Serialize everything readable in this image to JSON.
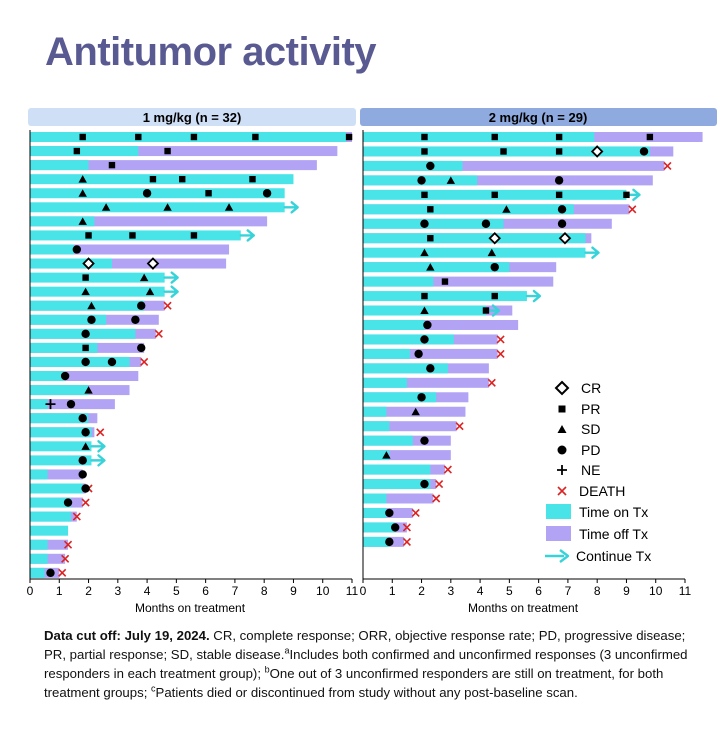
{
  "title": "Antitumor activity",
  "legend": {
    "cr": "CR",
    "pr": "PR",
    "sd": "SD",
    "pd": "PD",
    "ne": "NE",
    "death": "DEATH",
    "time_on": "Time on Tx",
    "time_off": "Time off Tx",
    "continue": "Continue Tx"
  },
  "colors": {
    "on_tx": "#49e4e8",
    "off_tx": "#b3a3f5",
    "death": "#dd2222",
    "arrow": "#38d3d8",
    "panel1_header": "#cfdff6",
    "panel2_header": "#8eaade",
    "title": "#5a5a92"
  },
  "footnote": {
    "cutoff": "Data cut off: July 19, 2024.",
    "part1": " CR, complete response; ORR, objective response rate; PD, progressive disease; PR, partial response; SD, stable disease.",
    "sup_a": "a",
    "part2": "Includes both confirmed and unconfirmed responses (3 unconfirmed responders in each treatment group); ",
    "sup_b": "b",
    "part3": "One out of 3 unconfirmed responders are still on treatment, for both treatment groups; ",
    "sup_c": "c",
    "part4": "Patients died or discontinued from study without any post-baseline scan."
  },
  "chart_data": [
    {
      "type": "bar",
      "title": "1 mg/kg (n = 32)",
      "xlabel": "Months on treatment",
      "xlim": [
        0,
        11
      ],
      "xticks": [
        0,
        1,
        2,
        3,
        4,
        5,
        6,
        7,
        8,
        9,
        10,
        11
      ],
      "patients": [
        {
          "on": 10.8,
          "off": 11.0,
          "events": [
            [
              "PR",
              1.8
            ],
            [
              "PR",
              3.7
            ],
            [
              "PR",
              5.6
            ],
            [
              "PR",
              7.7
            ],
            [
              "PR",
              10.9
            ]
          ]
        },
        {
          "on": 3.7,
          "off": 10.5,
          "events": [
            [
              "PR",
              1.6
            ],
            [
              "PR",
              4.7
            ]
          ]
        },
        {
          "on": 2.0,
          "off": 9.8,
          "events": [
            [
              "PR",
              2.8
            ]
          ]
        },
        {
          "on": 9.0,
          "off": 9.0,
          "events": [
            [
              "SD",
              1.8
            ],
            [
              "PR",
              4.2
            ],
            [
              "PR",
              5.2
            ],
            [
              "PR",
              7.6
            ]
          ]
        },
        {
          "on": 8.7,
          "off": 8.7,
          "events": [
            [
              "SD",
              1.8
            ],
            [
              "PD",
              4.0
            ],
            [
              "PR",
              6.1
            ],
            [
              "PD",
              8.1
            ]
          ]
        },
        {
          "on": 8.7,
          "off": 8.7,
          "cont": true,
          "events": [
            [
              "SD",
              2.6
            ],
            [
              "SD",
              4.7
            ],
            [
              "SD",
              6.8
            ]
          ]
        },
        {
          "on": 2.2,
          "off": 8.1,
          "events": [
            [
              "SD",
              1.8
            ]
          ]
        },
        {
          "on": 7.2,
          "off": 7.2,
          "cont": true,
          "events": [
            [
              "PR",
              2.0
            ],
            [
              "PR",
              3.5
            ],
            [
              "PR",
              5.6
            ]
          ]
        },
        {
          "on": 1.5,
          "off": 6.8,
          "events": [
            [
              "PD",
              1.6
            ]
          ]
        },
        {
          "on": 2.8,
          "off": 6.7,
          "events": [
            [
              "CR",
              2.0
            ],
            [
              "CR",
              4.2
            ]
          ]
        },
        {
          "on": 4.6,
          "off": 4.6,
          "cont": true,
          "events": [
            [
              "PR",
              1.9
            ],
            [
              "SD",
              3.9
            ]
          ]
        },
        {
          "on": 4.6,
          "off": 4.6,
          "cont": true,
          "events": [
            [
              "SD",
              1.9
            ],
            [
              "SD",
              4.1
            ]
          ]
        },
        {
          "on": 3.9,
          "off": 4.6,
          "death": 4.7,
          "events": [
            [
              "SD",
              2.1
            ],
            [
              "PD",
              3.8
            ]
          ]
        },
        {
          "on": 2.6,
          "off": 4.4,
          "events": [
            [
              "PD",
              2.1
            ],
            [
              "PD",
              3.6
            ]
          ]
        },
        {
          "on": 3.6,
          "off": 4.3,
          "death": 4.4,
          "events": [
            [
              "PD",
              1.9
            ]
          ]
        },
        {
          "on": 2.3,
          "off": 3.9,
          "events": [
            [
              "PR",
              1.9
            ],
            [
              "PD",
              3.8
            ]
          ]
        },
        {
          "on": 3.4,
          "off": 3.8,
          "death": 3.9,
          "events": [
            [
              "PD",
              1.9
            ],
            [
              "PD",
              2.8
            ]
          ]
        },
        {
          "on": 1.2,
          "off": 3.7,
          "events": [
            [
              "PD",
              1.2
            ]
          ]
        },
        {
          "on": 2.0,
          "off": 3.4,
          "events": [
            [
              "SD",
              2.0
            ]
          ]
        },
        {
          "on": 0.6,
          "off": 2.9,
          "events": [
            [
              "NE",
              0.7
            ],
            [
              "PD",
              1.4
            ]
          ]
        },
        {
          "on": 2.0,
          "off": 2.3,
          "events": [
            [
              "PD",
              1.8
            ]
          ]
        },
        {
          "on": 2.1,
          "off": 2.2,
          "death": 2.4,
          "events": [
            [
              "PD",
              1.9
            ]
          ]
        },
        {
          "on": 2.1,
          "off": 2.1,
          "cont": true,
          "events": [
            [
              "SD",
              1.9
            ]
          ]
        },
        {
          "on": 2.1,
          "off": 2.1,
          "cont": true,
          "events": [
            [
              "PD",
              1.8
            ]
          ]
        },
        {
          "on": 0.6,
          "off": 1.8,
          "events": [
            [
              "PD",
              1.8
            ]
          ]
        },
        {
          "on": 1.8,
          "off": 1.9,
          "death": 2.0,
          "events": [
            [
              "PD",
              1.9
            ]
          ]
        },
        {
          "on": 1.4,
          "off": 1.8,
          "death": 1.9,
          "events": [
            [
              "PD",
              1.3
            ]
          ]
        },
        {
          "on": 1.4,
          "off": 1.6,
          "death": 1.6,
          "events": []
        },
        {
          "on": 1.3,
          "off": 1.3,
          "events": []
        },
        {
          "on": 0.6,
          "off": 1.3,
          "death": 1.3,
          "events": []
        },
        {
          "on": 0.6,
          "off": 1.2,
          "death": 1.2,
          "events": []
        },
        {
          "on": 0.5,
          "off": 1.0,
          "death": 1.1,
          "events": [
            [
              "PD",
              0.7
            ]
          ]
        }
      ]
    },
    {
      "type": "bar",
      "title": "2 mg/kg (n = 29)",
      "xlabel": "Months on treatment",
      "xlim": [
        0,
        11
      ],
      "xticks": [
        0,
        1,
        2,
        3,
        4,
        5,
        6,
        7,
        8,
        9,
        10,
        11
      ],
      "patients": [
        {
          "on": 7.9,
          "off": 11.6,
          "events": [
            [
              "PR",
              2.1
            ],
            [
              "PR",
              4.5
            ],
            [
              "PR",
              6.7
            ],
            [
              "PR",
              9.8
            ]
          ]
        },
        {
          "on": 9.8,
          "off": 10.6,
          "events": [
            [
              "PR",
              2.1
            ],
            [
              "PR",
              4.8
            ],
            [
              "PR",
              6.7
            ],
            [
              "CR",
              8.0
            ],
            [
              "PD",
              9.6
            ]
          ]
        },
        {
          "on": 3.4,
          "off": 10.3,
          "death": 10.4,
          "events": [
            [
              "PD",
              2.3
            ]
          ]
        },
        {
          "on": 3.9,
          "off": 9.9,
          "events": [
            [
              "PD",
              2.0
            ],
            [
              "SD",
              3.0
            ],
            [
              "PD",
              6.7
            ]
          ]
        },
        {
          "on": 9.0,
          "off": 9.0,
          "cont": true,
          "events": [
            [
              "PR",
              2.1
            ],
            [
              "PR",
              4.5
            ],
            [
              "PR",
              6.7
            ],
            [
              "PR",
              9.0
            ]
          ]
        },
        {
          "on": 7.2,
          "off": 9.1,
          "death": 9.2,
          "events": [
            [
              "PR",
              2.3
            ],
            [
              "SD",
              4.9
            ],
            [
              "PD",
              6.8
            ]
          ]
        },
        {
          "on": 4.8,
          "off": 8.5,
          "events": [
            [
              "PD",
              2.1
            ],
            [
              "PD",
              4.2
            ],
            [
              "PD",
              6.8
            ]
          ]
        },
        {
          "on": 7.6,
          "off": 7.8,
          "events": [
            [
              "PR",
              2.3
            ],
            [
              "CR",
              4.5
            ],
            [
              "CR",
              6.9
            ]
          ]
        },
        {
          "on": 7.6,
          "off": 7.6,
          "cont": true,
          "events": [
            [
              "SD",
              2.1
            ],
            [
              "SD",
              4.4
            ]
          ]
        },
        {
          "on": 5.0,
          "off": 6.6,
          "events": [
            [
              "SD",
              2.3
            ],
            [
              "PD",
              4.5
            ]
          ]
        },
        {
          "on": 2.4,
          "off": 6.5,
          "events": [
            [
              "PR",
              2.8
            ]
          ]
        },
        {
          "on": 5.6,
          "off": 5.6,
          "cont": true,
          "events": [
            [
              "PR",
              2.1
            ],
            [
              "PR",
              4.5
            ]
          ]
        },
        {
          "on": 4.2,
          "off": 5.1,
          "cont": true,
          "events": [
            [
              "SD",
              2.1
            ],
            [
              "PR",
              4.2
            ]
          ]
        },
        {
          "on": 2.1,
          "off": 5.3,
          "events": [
            [
              "PD",
              2.2
            ]
          ]
        },
        {
          "on": 3.1,
          "off": 4.6,
          "death": 4.7,
          "events": [
            [
              "PD",
              2.1
            ]
          ]
        },
        {
          "on": 1.6,
          "off": 4.6,
          "death": 4.7,
          "events": [
            [
              "PD",
              1.9
            ]
          ]
        },
        {
          "on": 2.9,
          "off": 4.3,
          "events": [
            [
              "PD",
              2.3
            ]
          ]
        },
        {
          "on": 1.5,
          "off": 4.3,
          "death": 4.4,
          "events": []
        },
        {
          "on": 2.5,
          "off": 3.6,
          "events": [
            [
              "PD",
              2.0
            ]
          ]
        },
        {
          "on": 0.8,
          "off": 3.5,
          "events": [
            [
              "SD",
              1.8
            ]
          ]
        },
        {
          "on": 0.9,
          "off": 3.2,
          "death": 3.3,
          "events": []
        },
        {
          "on": 1.7,
          "off": 3.0,
          "events": [
            [
              "PD",
              2.1
            ]
          ]
        },
        {
          "on": 0.9,
          "off": 3.0,
          "events": [
            [
              "SD",
              0.8
            ]
          ]
        },
        {
          "on": 2.3,
          "off": 2.8,
          "death": 2.9,
          "events": []
        },
        {
          "on": 2.3,
          "off": 2.5,
          "death": 2.6,
          "events": [
            [
              "PD",
              2.1
            ]
          ]
        },
        {
          "on": 0.8,
          "off": 2.4,
          "death": 2.5,
          "events": []
        },
        {
          "on": 0.8,
          "off": 1.7,
          "death": 1.8,
          "events": [
            [
              "PD",
              0.9
            ]
          ]
        },
        {
          "on": 1.1,
          "off": 1.5,
          "death": 1.5,
          "events": [
            [
              "PD",
              1.1
            ]
          ]
        },
        {
          "on": 0.9,
          "off": 1.4,
          "death": 1.5,
          "events": [
            [
              "PD",
              0.9
            ]
          ]
        }
      ]
    }
  ]
}
